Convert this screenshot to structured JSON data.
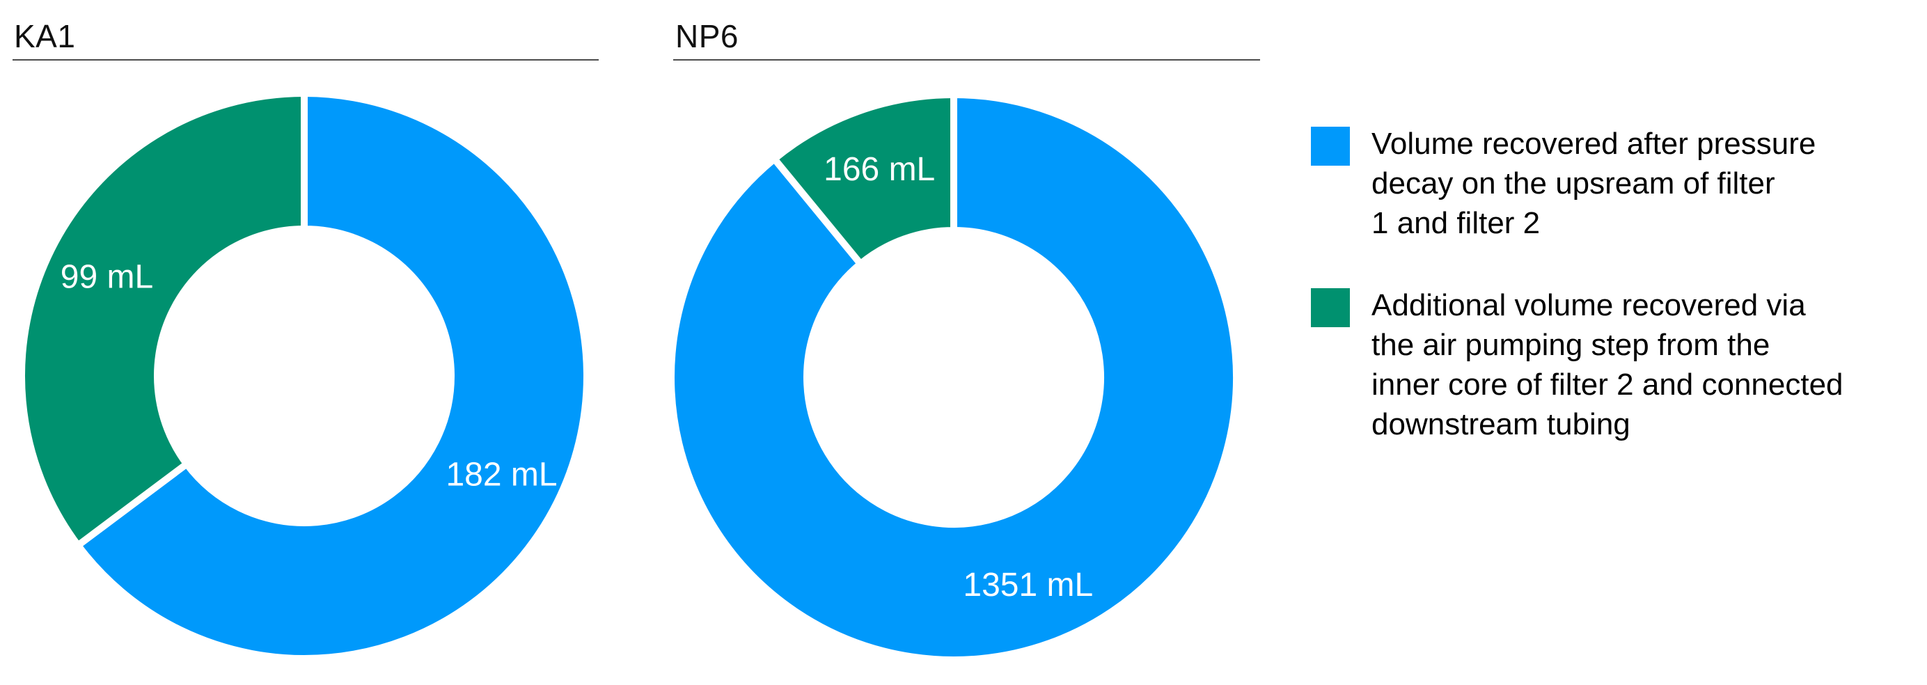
{
  "page": {
    "background": "#ffffff"
  },
  "colors": {
    "blue": "#0099fb",
    "green": "#00916f",
    "title_text": "#111111",
    "underline": "#4d4d4d",
    "slice_label_text": "#ffffff",
    "legend_text": "#000000"
  },
  "chart_data": [
    {
      "type": "pie",
      "title": "KA1",
      "unit": "mL",
      "values": [
        182,
        99
      ],
      "slice_labels": [
        "182 mL",
        "99 mL"
      ],
      "colors": [
        "#0099fb",
        "#00916f"
      ],
      "series_names": [
        "Volume recovered after pressure decay on the upsream of filter 1 and filter 2",
        "Additional volume recovered via the air pumping step from the inner core of filter 2 and connected downstream tubing"
      ],
      "hole": 0.52,
      "start_angle": 0,
      "direction": "clockwise",
      "legend_position": "right",
      "grid": false
    },
    {
      "type": "pie",
      "title": "NP6",
      "unit": "mL",
      "values": [
        1351,
        166
      ],
      "slice_labels": [
        "1351 mL",
        "166 mL"
      ],
      "colors": [
        "#0099fb",
        "#00916f"
      ],
      "series_names": [
        "Volume recovered after pressure decay on the upsream of filter 1 and filter 2",
        "Additional volume recovered via the air pumping step from the inner core of filter 2 and connected downstream tubing"
      ],
      "hole": 0.52,
      "start_angle": 0,
      "direction": "clockwise",
      "legend_position": "right",
      "grid": false
    }
  ],
  "legend": {
    "items": [
      {
        "color": "#0099fb",
        "label": "Volume recovered after pressure decay on the upsream of filter 1 and filter 2",
        "lines": [
          "Volume recovered after pressure",
          "decay on the upsream of filter",
          "1 and filter 2"
        ]
      },
      {
        "color": "#00916f",
        "label": "Additional volume recovered via the air pumping step from the inner core of filter 2 and connected downstream tubing",
        "lines": [
          "Additional volume recovered via",
          "the air pumping step from the",
          "inner core of filter 2 and connected",
          "downstream tubing"
        ]
      }
    ]
  }
}
